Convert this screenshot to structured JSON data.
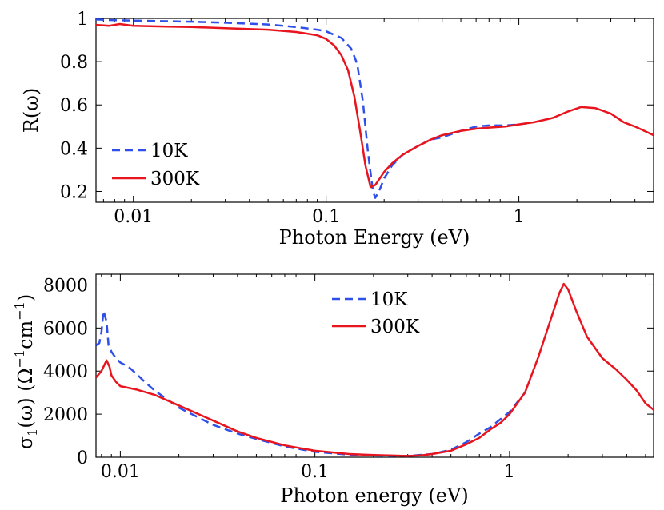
{
  "chart_data": [
    {
      "type": "line",
      "xscale": "log",
      "xlim": [
        0.0064,
        5.0
      ],
      "ylim": [
        0.15,
        1.0
      ],
      "xticks": [
        0.01,
        0.1,
        1
      ],
      "xtick_labels": [
        "0.01",
        "0.1",
        "1"
      ],
      "yticks": [
        0.2,
        0.4,
        0.6,
        0.8,
        1.0
      ],
      "ytick_labels": [
        "0.2",
        "0.4",
        "0.6",
        "0.8",
        "1"
      ],
      "xlabel": "Photon Energy (eV)",
      "ylabel": "R(ω)",
      "legend_position": "bottom-left",
      "series": [
        {
          "name": "10K",
          "color": "#2f4fe8",
          "dash": "dashed",
          "x": [
            0.0064,
            0.008,
            0.01,
            0.02,
            0.03,
            0.05,
            0.07,
            0.09,
            0.1,
            0.12,
            0.135,
            0.145,
            0.155,
            0.165,
            0.175,
            0.18,
            0.19,
            0.2,
            0.22,
            0.25,
            0.3,
            0.35,
            0.4,
            0.5,
            0.6,
            0.7,
            0.85,
            1.0,
            1.1
          ],
          "y": [
            0.995,
            0.992,
            0.99,
            0.985,
            0.98,
            0.972,
            0.96,
            0.948,
            0.94,
            0.91,
            0.86,
            0.79,
            0.62,
            0.38,
            0.2,
            0.17,
            0.21,
            0.26,
            0.32,
            0.37,
            0.41,
            0.44,
            0.45,
            0.48,
            0.5,
            0.505,
            0.505,
            0.51,
            0.515
          ]
        },
        {
          "name": "300K",
          "color": "#e8141e",
          "dash": "solid",
          "x": [
            0.0064,
            0.0075,
            0.0085,
            0.01,
            0.015,
            0.02,
            0.03,
            0.05,
            0.07,
            0.09,
            0.1,
            0.11,
            0.12,
            0.13,
            0.14,
            0.15,
            0.16,
            0.17,
            0.18,
            0.19,
            0.2,
            0.22,
            0.25,
            0.3,
            0.35,
            0.4,
            0.5,
            0.6,
            0.7,
            0.85,
            1.0,
            1.2,
            1.5,
            1.8,
            2.1,
            2.5,
            3.0,
            3.5,
            4.0,
            5.0
          ],
          "y": [
            0.97,
            0.966,
            0.974,
            0.966,
            0.962,
            0.96,
            0.955,
            0.948,
            0.937,
            0.922,
            0.905,
            0.875,
            0.83,
            0.76,
            0.64,
            0.48,
            0.32,
            0.22,
            0.23,
            0.26,
            0.29,
            0.33,
            0.37,
            0.41,
            0.44,
            0.46,
            0.48,
            0.49,
            0.495,
            0.5,
            0.51,
            0.52,
            0.54,
            0.57,
            0.59,
            0.585,
            0.56,
            0.52,
            0.5,
            0.46
          ]
        }
      ]
    },
    {
      "type": "line",
      "xscale": "log",
      "xlim": [
        0.0075,
        5.5
      ],
      "ylim": [
        0,
        8500
      ],
      "xticks": [
        0.01,
        0.1,
        1
      ],
      "xtick_labels": [
        "0.01",
        "0.1",
        "1"
      ],
      "yticks": [
        0,
        2000,
        4000,
        6000,
        8000
      ],
      "ytick_labels": [
        "0",
        "2000",
        "4000",
        "6000",
        "8000"
      ],
      "xlabel": "Photon energy (eV)",
      "ylabel_main": "σ",
      "ylabel_sub": "1",
      "ylabel_rest": "(ω) (Ω",
      "ylabel_sup1": "−1",
      "ylabel_mid": "cm",
      "ylabel_sup2": "−1",
      "ylabel_end": ")",
      "legend_position": "top-center",
      "series": [
        {
          "name": "10K",
          "color": "#2f4fe8",
          "dash": "dashed",
          "x": [
            0.0075,
            0.0078,
            0.008,
            0.0082,
            0.0085,
            0.0087,
            0.009,
            0.0095,
            0.01,
            0.011,
            0.012,
            0.013,
            0.015,
            0.02,
            0.03,
            0.04,
            0.05,
            0.07,
            0.1,
            0.15,
            0.2,
            0.3,
            0.4,
            0.5,
            0.6,
            0.7,
            0.8,
            1.0,
            1.2
          ],
          "y": [
            5200,
            5300,
            5800,
            6800,
            6300,
            5200,
            4900,
            4600,
            4400,
            4200,
            3900,
            3600,
            3100,
            2300,
            1500,
            1100,
            850,
            500,
            250,
            120,
            80,
            60,
            150,
            350,
            700,
            1100,
            1400,
            2100,
            3000
          ]
        },
        {
          "name": "300K",
          "color": "#e8141e",
          "dash": "solid",
          "x": [
            0.0075,
            0.008,
            0.0085,
            0.0088,
            0.009,
            0.0095,
            0.01,
            0.012,
            0.015,
            0.02,
            0.03,
            0.04,
            0.05,
            0.07,
            0.1,
            0.15,
            0.2,
            0.3,
            0.35,
            0.4,
            0.5,
            0.6,
            0.7,
            0.8,
            0.9,
            1.0,
            1.2,
            1.4,
            1.6,
            1.8,
            1.9,
            2.0,
            2.2,
            2.5,
            3.0,
            3.5,
            4.0,
            4.5,
            5.0,
            5.5
          ],
          "y": [
            3700,
            4000,
            4500,
            4200,
            3800,
            3500,
            3300,
            3150,
            2900,
            2400,
            1700,
            1200,
            900,
            550,
            300,
            150,
            100,
            60,
            80,
            150,
            300,
            600,
            900,
            1300,
            1600,
            2000,
            3000,
            4600,
            6200,
            7600,
            8050,
            7800,
            6800,
            5600,
            4600,
            4100,
            3600,
            3100,
            2500,
            2200
          ]
        }
      ]
    }
  ]
}
